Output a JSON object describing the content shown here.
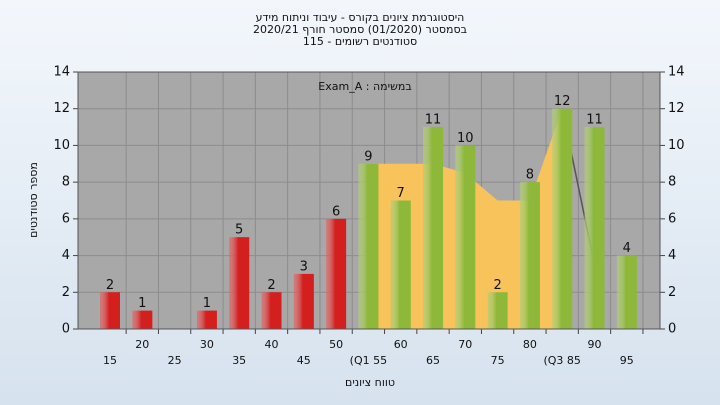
{
  "chart_data": {
    "type": "bar",
    "title": "היסטוגרמת ציונים בקורס - עיבוד וניתוח מידע",
    "subtitle": "בסמסטר (01/2020) סמסטר חורף 2020/21",
    "subtitle2": "סטודנטים רשומים - 115",
    "annotation": "במשימה : Exam_A",
    "x_label": "טווח ציונים",
    "y_label": "מספר סטודנטים",
    "categories": [
      "15",
      "20",
      "25",
      "30",
      "35",
      "40",
      "45",
      "50",
      "(Q1 55",
      "60",
      "65",
      "70",
      "75",
      "80",
      "(Q3 85",
      "90",
      "95"
    ],
    "values": [
      2,
      1,
      0,
      1,
      5,
      2,
      3,
      6,
      9,
      7,
      11,
      10,
      2,
      8,
      12,
      11,
      4
    ],
    "colors": [
      "#d42020",
      "#d42020",
      "#d42020",
      "#d42020",
      "#d42020",
      "#d42020",
      "#d42020",
      "#d42020",
      "#8fb83a",
      "#8fb83a",
      "#8fb83a",
      "#8fb83a",
      "#8fb83a",
      "#8fb83a",
      "#8fb83a",
      "#8fb83a",
      "#8fb83a"
    ],
    "overlays": [
      {
        "kind": "area",
        "color": "#f7c35a",
        "values": [
          null,
          null,
          null,
          null,
          null,
          null,
          null,
          null,
          9,
          9,
          9,
          8.5,
          7,
          7,
          12,
          null,
          null
        ]
      },
      {
        "kind": "line",
        "color": "#555555",
        "values": [
          null,
          null,
          null,
          null,
          null,
          null,
          null,
          null,
          null,
          null,
          null,
          null,
          null,
          null,
          12,
          3.5,
          null
        ]
      }
    ],
    "ylim": [
      0,
      14
    ],
    "yticks": [
      0,
      2,
      4,
      6,
      8,
      10,
      12,
      14
    ],
    "y2lim": [
      0,
      14
    ],
    "y2ticks": [
      0,
      2,
      4,
      6,
      8,
      10,
      12,
      14
    ],
    "grid": true
  }
}
